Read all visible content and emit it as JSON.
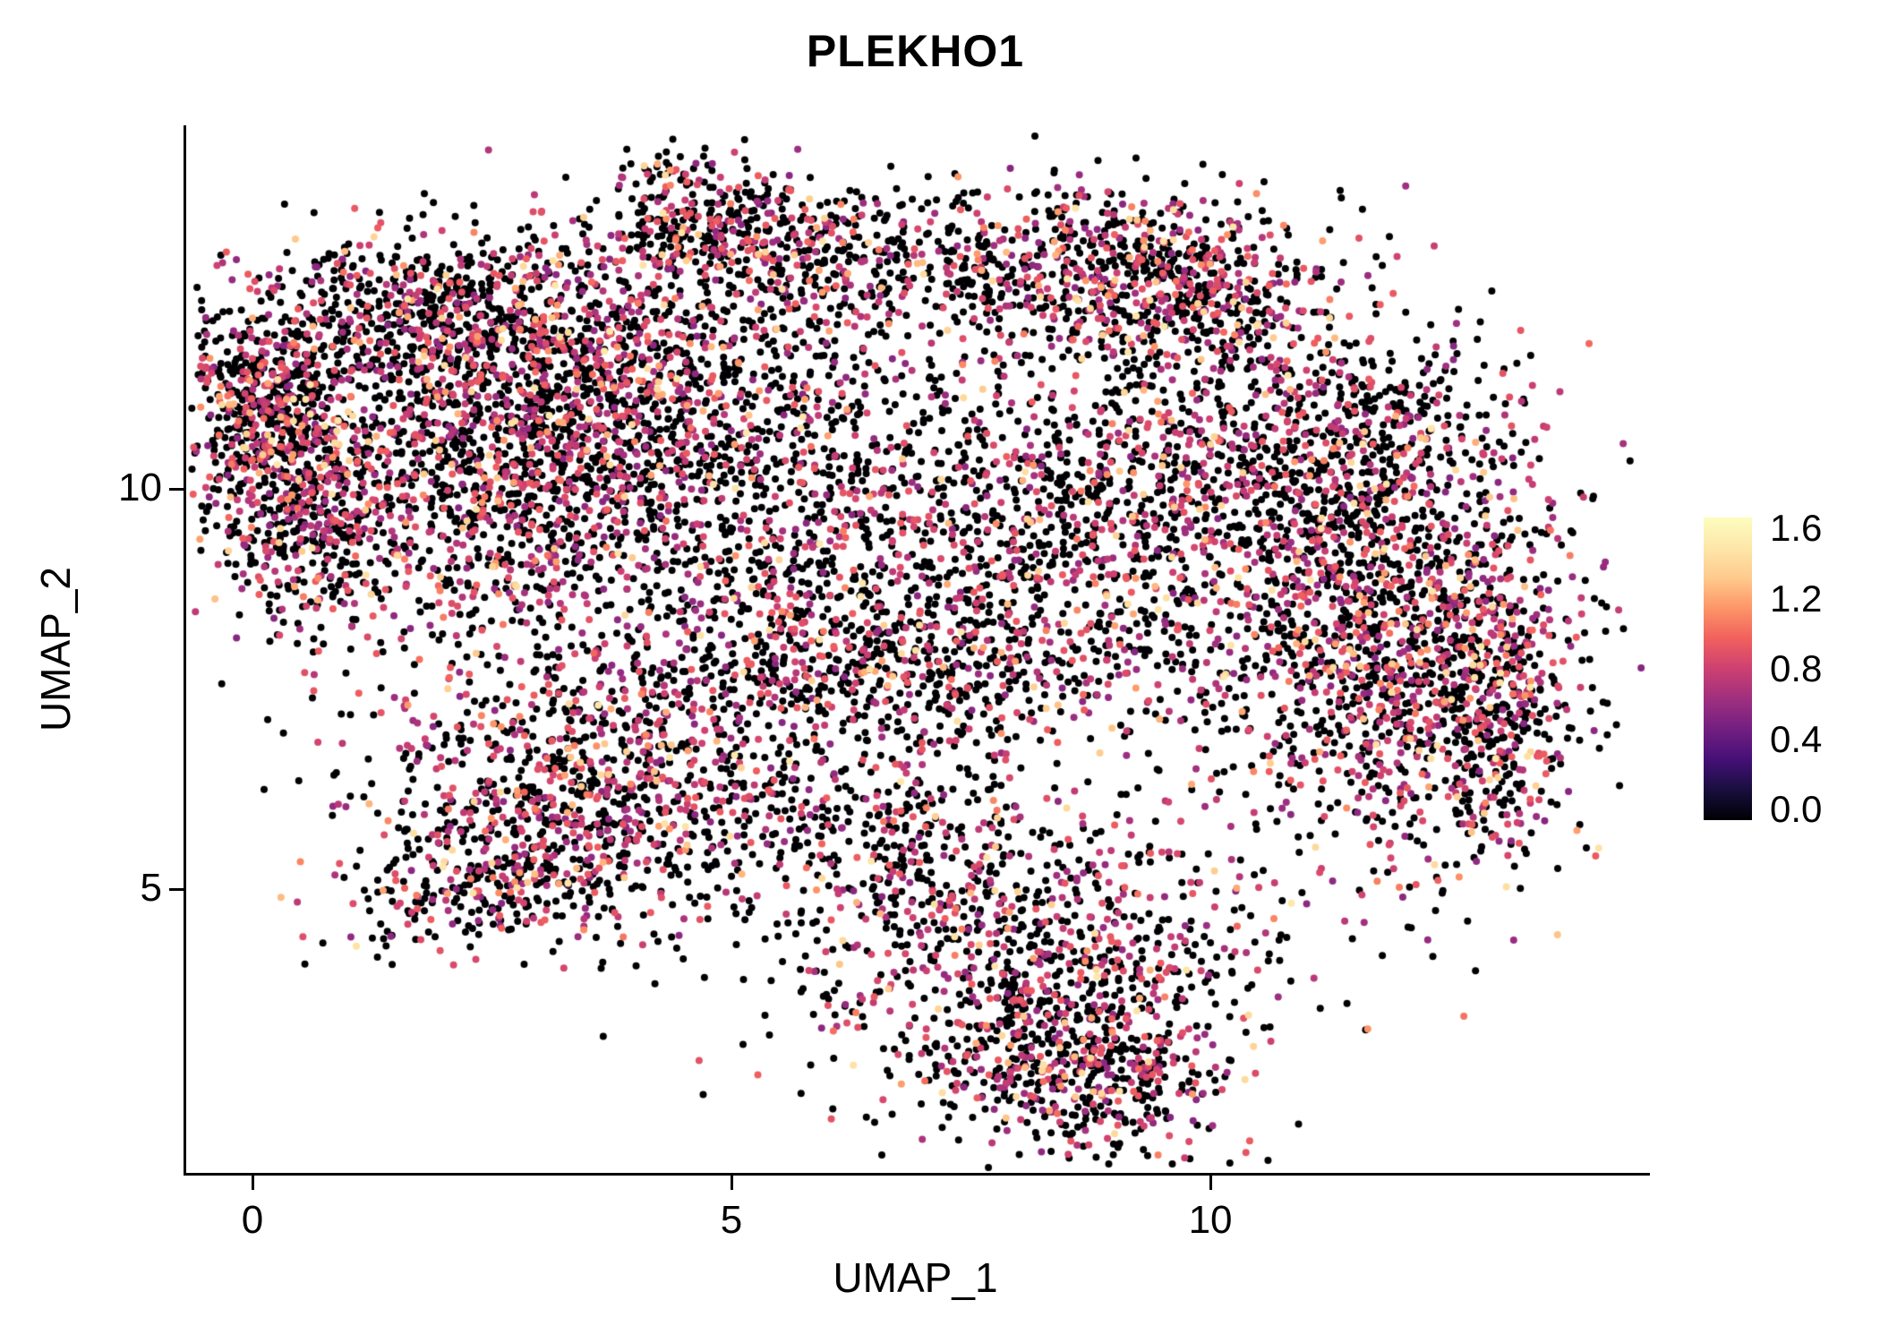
{
  "chart_data": {
    "type": "scatter",
    "title": "PLEKHO1",
    "xlabel": "UMAP_1",
    "ylabel": "UMAP_2",
    "x_ticks": [
      {
        "value": 0,
        "label": "0"
      },
      {
        "value": 5,
        "label": "5"
      },
      {
        "value": 10,
        "label": "10"
      }
    ],
    "y_ticks": [
      {
        "value": 10,
        "label": "10"
      },
      {
        "value": 5,
        "label": "5"
      }
    ],
    "xlim": [
      -0.72,
      14.56
    ],
    "ylim": [
      1.46,
      14.54
    ],
    "grid": false,
    "legend_position": "right",
    "point_radius_px": 4,
    "color_scale": {
      "name": "magma",
      "domain": [
        0.0,
        1.6
      ],
      "stops": [
        {
          "t": 0.0,
          "color": "#000004"
        },
        {
          "t": 0.1,
          "color": "#180f3e"
        },
        {
          "t": 0.2,
          "color": "#451077"
        },
        {
          "t": 0.3,
          "color": "#721f81"
        },
        {
          "t": 0.4,
          "color": "#9f2f7f"
        },
        {
          "t": 0.5,
          "color": "#cd4071"
        },
        {
          "t": 0.6,
          "color": "#f1605d"
        },
        {
          "t": 0.7,
          "color": "#fd9567"
        },
        {
          "t": 0.8,
          "color": "#feca8d"
        },
        {
          "t": 0.9,
          "color": "#fde7a9"
        },
        {
          "t": 1.0,
          "color": "#fcfdbf"
        }
      ],
      "legend_tick_labels": [
        "1.6",
        "1.2",
        "0.8",
        "0.4",
        "0.0"
      ]
    },
    "expression_profile": {
      "nonzero_low_fraction": 0.82,
      "low_value_range": [
        0.55,
        0.95
      ],
      "high_value_range": [
        0.95,
        1.45
      ]
    },
    "random_seed": 42,
    "point_clusters": [
      {
        "name": "left-hook-top",
        "cx": 0.15,
        "cy": 11.1,
        "sx": 0.45,
        "sy": 0.65,
        "n": 550,
        "p_zero": 0.6
      },
      {
        "name": "left-hook-lower",
        "cx": 0.45,
        "cy": 9.7,
        "sx": 0.5,
        "sy": 0.8,
        "n": 450,
        "p_zero": 0.6
      },
      {
        "name": "left-upper-ridge",
        "cx": 1.9,
        "cy": 12.2,
        "sx": 0.9,
        "sy": 0.55,
        "n": 650,
        "p_zero": 0.62
      },
      {
        "name": "left-mass",
        "cx": 2.6,
        "cy": 10.2,
        "sx": 1.1,
        "sy": 1.1,
        "n": 1300,
        "p_zero": 0.6
      },
      {
        "name": "mid-left-band",
        "cx": 3.9,
        "cy": 11.3,
        "sx": 1.0,
        "sy": 0.8,
        "n": 700,
        "p_zero": 0.62
      },
      {
        "name": "top-peak",
        "cx": 4.5,
        "cy": 13.3,
        "sx": 0.5,
        "sy": 0.45,
        "n": 280,
        "p_zero": 0.6
      },
      {
        "name": "top-peak-2",
        "cx": 5.6,
        "cy": 13.0,
        "sx": 0.6,
        "sy": 0.5,
        "n": 260,
        "p_zero": 0.6
      },
      {
        "name": "center-sparse",
        "cx": 5.8,
        "cy": 9.6,
        "sx": 1.3,
        "sy": 1.3,
        "n": 900,
        "p_zero": 0.68
      },
      {
        "name": "center-band",
        "cx": 6.6,
        "cy": 7.8,
        "sx": 1.6,
        "sy": 0.6,
        "n": 700,
        "p_zero": 0.6
      },
      {
        "name": "lower-left-lobe",
        "cx": 3.6,
        "cy": 6.2,
        "sx": 1.1,
        "sy": 0.9,
        "n": 1000,
        "p_zero": 0.58
      },
      {
        "name": "left-foot",
        "cx": 2.2,
        "cy": 5.0,
        "sx": 0.7,
        "sy": 0.4,
        "n": 220,
        "p_zero": 0.6
      },
      {
        "name": "top-right-arc",
        "cx": 8.3,
        "cy": 12.8,
        "sx": 1.3,
        "sy": 0.55,
        "n": 650,
        "p_zero": 0.62
      },
      {
        "name": "right-upper-dense",
        "cx": 9.7,
        "cy": 12.4,
        "sx": 0.7,
        "sy": 0.5,
        "n": 350,
        "p_zero": 0.55
      },
      {
        "name": "right-mass",
        "cx": 9.3,
        "cy": 9.8,
        "sx": 1.4,
        "sy": 1.2,
        "n": 1200,
        "p_zero": 0.62
      },
      {
        "name": "right-dense-edge",
        "cx": 11.9,
        "cy": 8.0,
        "sx": 0.9,
        "sy": 1.4,
        "n": 1400,
        "p_zero": 0.55
      },
      {
        "name": "right-far-edge",
        "cx": 13.0,
        "cy": 7.3,
        "sx": 0.4,
        "sy": 0.9,
        "n": 300,
        "p_zero": 0.55
      },
      {
        "name": "right-upper-mass",
        "cx": 11.3,
        "cy": 10.6,
        "sx": 1.0,
        "sy": 0.8,
        "n": 500,
        "p_zero": 0.65
      },
      {
        "name": "bottom-lobe",
        "cx": 8.2,
        "cy": 4.0,
        "sx": 1.2,
        "sy": 1.0,
        "n": 900,
        "p_zero": 0.6
      },
      {
        "name": "bottom-tip",
        "cx": 8.6,
        "cy": 2.7,
        "sx": 0.7,
        "sy": 0.5,
        "n": 400,
        "p_zero": 0.55
      },
      {
        "name": "bottom-left-bridge",
        "cx": 6.8,
        "cy": 5.6,
        "sx": 0.8,
        "sy": 0.7,
        "n": 300,
        "p_zero": 0.65
      }
    ]
  }
}
